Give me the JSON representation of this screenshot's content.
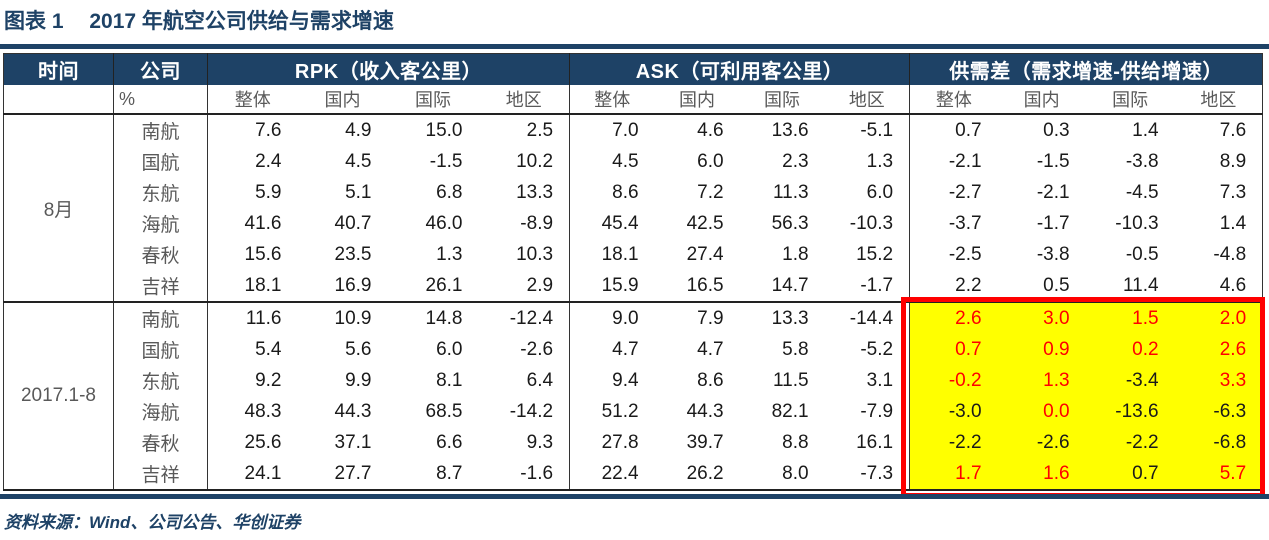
{
  "title": {
    "prefix": "图表 1",
    "text": "2017 年航空公司供给与需求增速"
  },
  "colors": {
    "navy": "#1e4266",
    "highlight_fill": "#ffff00",
    "highlight_border": "#ff0000",
    "positive_text": "#ff0000",
    "muted_text": "#595959"
  },
  "table": {
    "header_groups": [
      "时间",
      "公司",
      "RPK（收入客公里）",
      "ASK（可利用客公里）",
      "供需差（需求增速-供给增速）"
    ],
    "unit_label": "%",
    "sub_headers": [
      "整体",
      "国内",
      "国际",
      "地区"
    ],
    "sections": [
      {
        "period": "8月",
        "rows": [
          {
            "company": "南航",
            "rpk": [
              "7.6",
              "4.9",
              "15.0",
              "2.5"
            ],
            "ask": [
              "7.0",
              "4.6",
              "13.6",
              "-5.1"
            ],
            "diff": [
              "0.7",
              "0.3",
              "1.4",
              "7.6"
            ],
            "diff_red": [
              false,
              false,
              false,
              false
            ]
          },
          {
            "company": "国航",
            "rpk": [
              "2.4",
              "4.5",
              "-1.5",
              "10.2"
            ],
            "ask": [
              "4.5",
              "6.0",
              "2.3",
              "1.3"
            ],
            "diff": [
              "-2.1",
              "-1.5",
              "-3.8",
              "8.9"
            ],
            "diff_red": [
              false,
              false,
              false,
              false
            ]
          },
          {
            "company": "东航",
            "rpk": [
              "5.9",
              "5.1",
              "6.8",
              "13.3"
            ],
            "ask": [
              "8.6",
              "7.2",
              "11.3",
              "6.0"
            ],
            "diff": [
              "-2.7",
              "-2.1",
              "-4.5",
              "7.3"
            ],
            "diff_red": [
              false,
              false,
              false,
              false
            ]
          },
          {
            "company": "海航",
            "rpk": [
              "41.6",
              "40.7",
              "46.0",
              "-8.9"
            ],
            "ask": [
              "45.4",
              "42.5",
              "56.3",
              "-10.3"
            ],
            "diff": [
              "-3.7",
              "-1.7",
              "-10.3",
              "1.4"
            ],
            "diff_red": [
              false,
              false,
              false,
              false
            ]
          },
          {
            "company": "春秋",
            "rpk": [
              "15.6",
              "23.5",
              "1.3",
              "10.3"
            ],
            "ask": [
              "18.1",
              "27.4",
              "1.8",
              "15.2"
            ],
            "diff": [
              "-2.5",
              "-3.8",
              "-0.5",
              "-4.8"
            ],
            "diff_red": [
              false,
              false,
              false,
              false
            ]
          },
          {
            "company": "吉祥",
            "rpk": [
              "18.1",
              "16.9",
              "26.1",
              "2.9"
            ],
            "ask": [
              "15.9",
              "16.5",
              "14.7",
              "-1.7"
            ],
            "diff": [
              "2.2",
              "0.5",
              "11.4",
              "4.6"
            ],
            "diff_red": [
              false,
              false,
              false,
              false
            ]
          }
        ]
      },
      {
        "period": "2017.1-8",
        "rows": [
          {
            "company": "南航",
            "rpk": [
              "11.6",
              "10.9",
              "14.8",
              "-12.4"
            ],
            "ask": [
              "9.0",
              "7.9",
              "13.3",
              "-14.4"
            ],
            "diff": [
              "2.6",
              "3.0",
              "1.5",
              "2.0"
            ],
            "diff_red": [
              true,
              true,
              true,
              true
            ]
          },
          {
            "company": "国航",
            "rpk": [
              "5.4",
              "5.6",
              "6.0",
              "-2.6"
            ],
            "ask": [
              "4.7",
              "4.7",
              "5.8",
              "-5.2"
            ],
            "diff": [
              "0.7",
              "0.9",
              "0.2",
              "2.6"
            ],
            "diff_red": [
              true,
              true,
              true,
              true
            ]
          },
          {
            "company": "东航",
            "rpk": [
              "9.2",
              "9.9",
              "8.1",
              "6.4"
            ],
            "ask": [
              "9.4",
              "8.6",
              "11.5",
              "3.1"
            ],
            "diff": [
              "-0.2",
              "1.3",
              "-3.4",
              "3.3"
            ],
            "diff_red": [
              true,
              true,
              false,
              true
            ]
          },
          {
            "company": "海航",
            "rpk": [
              "48.3",
              "44.3",
              "68.5",
              "-14.2"
            ],
            "ask": [
              "51.2",
              "44.3",
              "82.1",
              "-7.9"
            ],
            "diff": [
              "-3.0",
              "0.0",
              "-13.6",
              "-6.3"
            ],
            "diff_red": [
              false,
              true,
              false,
              false
            ]
          },
          {
            "company": "春秋",
            "rpk": [
              "25.6",
              "37.1",
              "6.6",
              "9.3"
            ],
            "ask": [
              "27.8",
              "39.7",
              "8.8",
              "16.1"
            ],
            "diff": [
              "-2.2",
              "-2.6",
              "-2.2",
              "-6.8"
            ],
            "diff_red": [
              false,
              false,
              false,
              false
            ]
          },
          {
            "company": "吉祥",
            "rpk": [
              "24.1",
              "27.7",
              "8.7",
              "-1.6"
            ],
            "ask": [
              "22.4",
              "26.2",
              "8.0",
              "-7.3"
            ],
            "diff": [
              "1.7",
              "1.6",
              "0.7",
              "5.7"
            ],
            "diff_red": [
              true,
              true,
              false,
              true
            ]
          }
        ]
      }
    ]
  },
  "source": "资料来源：Wind、公司公告、华创证券"
}
